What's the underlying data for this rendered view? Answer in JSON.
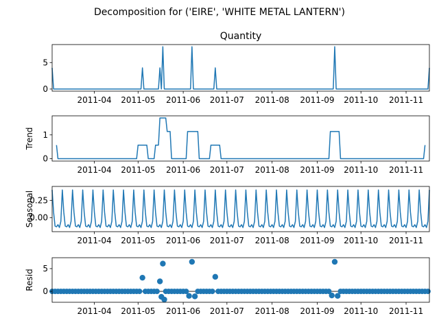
{
  "chart_data": {
    "type": "line",
    "title": "Decomposition for ('EIRE', 'WHITE METAL LANTERN')",
    "x_start": "2011-03-03",
    "x_end": "2011-11-17",
    "x_tick_labels": [
      "2011-04",
      "2011-05",
      "2011-06",
      "2011-07",
      "2011-08",
      "2011-09",
      "2011-10",
      "2011-11"
    ],
    "x_tick_dates": [
      "2011-04-01",
      "2011-05-01",
      "2011-06-01",
      "2011-07-01",
      "2011-08-01",
      "2011-09-01",
      "2011-10-01",
      "2011-11-01"
    ],
    "panels": [
      {
        "name": "observed",
        "title": "Quantity",
        "ylabel": "",
        "style": "line",
        "ylim": [
          -0.4,
          8.4
        ],
        "yticks": [
          0,
          5
        ],
        "ytick_labels": [
          "0",
          "5"
        ],
        "points": [
          [
            "2011-03-03",
            4
          ],
          [
            "2011-03-04",
            0
          ],
          [
            "2011-05-03",
            0
          ],
          [
            "2011-05-04",
            4
          ],
          [
            "2011-05-05",
            0
          ],
          [
            "2011-05-15",
            0
          ],
          [
            "2011-05-16",
            4
          ],
          [
            "2011-05-17",
            0
          ],
          [
            "2011-05-18",
            8
          ],
          [
            "2011-05-19",
            0
          ],
          [
            "2011-06-06",
            0
          ],
          [
            "2011-06-07",
            8
          ],
          [
            "2011-06-08",
            0
          ],
          [
            "2011-06-22",
            0
          ],
          [
            "2011-06-23",
            4
          ],
          [
            "2011-06-24",
            0
          ],
          [
            "2011-09-12",
            0
          ],
          [
            "2011-09-13",
            8
          ],
          [
            "2011-09-14",
            0
          ],
          [
            "2011-11-16",
            0
          ],
          [
            "2011-11-17",
            4
          ]
        ]
      },
      {
        "name": "trend",
        "title": "",
        "ylabel": "Trend",
        "style": "line",
        "ylim": [
          -0.1,
          1.8
        ],
        "yticks": [
          0,
          1
        ],
        "ytick_labels": [
          "0",
          "1"
        ],
        "points": [
          [
            "2011-03-06",
            0.57
          ],
          [
            "2011-03-07",
            0
          ],
          [
            "2011-04-30",
            0
          ],
          [
            "2011-05-01",
            0.57
          ],
          [
            "2011-05-07",
            0.57
          ],
          [
            "2011-05-08",
            0
          ],
          [
            "2011-05-12",
            0
          ],
          [
            "2011-05-13",
            0.57
          ],
          [
            "2011-05-15",
            0.57
          ],
          [
            "2011-05-16",
            1.71
          ],
          [
            "2011-05-20",
            1.71
          ],
          [
            "2011-05-21",
            1.14
          ],
          [
            "2011-05-23",
            1.14
          ],
          [
            "2011-05-24",
            0
          ],
          [
            "2011-06-03",
            0
          ],
          [
            "2011-06-04",
            1.14
          ],
          [
            "2011-06-11",
            1.14
          ],
          [
            "2011-06-12",
            0
          ],
          [
            "2011-06-19",
            0
          ],
          [
            "2011-06-20",
            0.57
          ],
          [
            "2011-06-26",
            0.57
          ],
          [
            "2011-06-27",
            0
          ],
          [
            "2011-09-09",
            0
          ],
          [
            "2011-09-10",
            1.14
          ],
          [
            "2011-09-16",
            1.14
          ],
          [
            "2011-09-17",
            0
          ],
          [
            "2011-11-13",
            0
          ],
          [
            "2011-11-14",
            0.57
          ]
        ]
      },
      {
        "name": "seasonal",
        "title": "",
        "ylabel": "Seasonal",
        "style": "line",
        "period_days": 7,
        "ylim": [
          -0.2,
          0.45
        ],
        "yticks": [
          0.0,
          0.25
        ],
        "ytick_labels": [
          "0.00",
          "0.25"
        ],
        "weekly_pattern": [
          0.4,
          0.08,
          -0.12,
          -0.13,
          -0.1,
          -0.14,
          -0.05
        ]
      },
      {
        "name": "resid",
        "title": "",
        "ylabel": "Resid",
        "style": "scatter",
        "baseline": 0,
        "ylim": [
          -2.4,
          7.4
        ],
        "yticks": [
          0,
          5
        ],
        "ytick_labels": [
          "0",
          "5"
        ],
        "outliers": [
          [
            "2011-05-04",
            3.0
          ],
          [
            "2011-05-16",
            2.2
          ],
          [
            "2011-05-17",
            -1.2
          ],
          [
            "2011-05-18",
            6.1
          ],
          [
            "2011-05-19",
            -1.8
          ],
          [
            "2011-06-07",
            6.5
          ],
          [
            "2011-06-05",
            -1.0
          ],
          [
            "2011-06-09",
            -1.1
          ],
          [
            "2011-06-23",
            3.2
          ],
          [
            "2011-09-13",
            6.5
          ],
          [
            "2011-09-11",
            -0.9
          ],
          [
            "2011-09-15",
            -1.0
          ]
        ]
      }
    ]
  }
}
